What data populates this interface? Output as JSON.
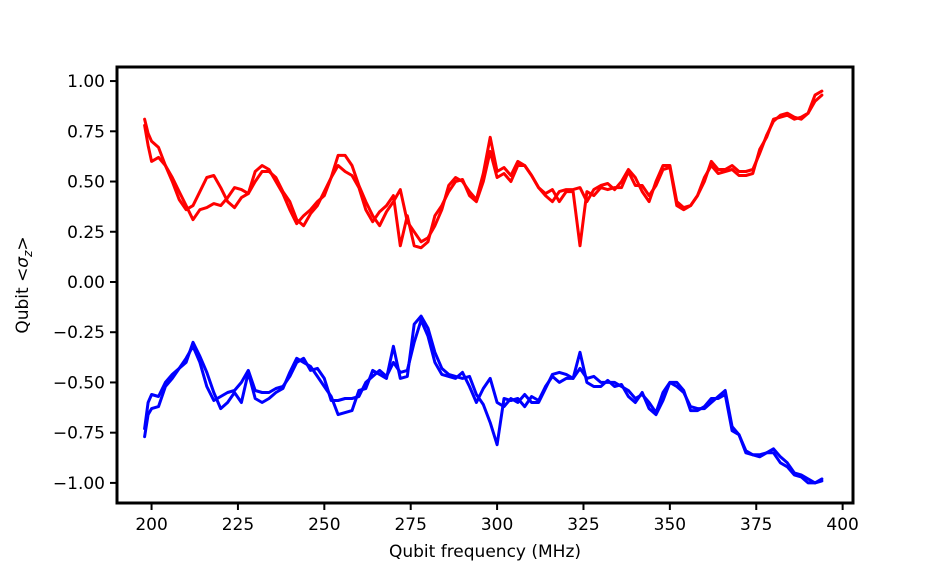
{
  "chart_data": {
    "type": "line",
    "title": "",
    "xlabel": "Qubit frequency (MHz)",
    "ylabel_prefix": "Qubit <",
    "ylabel_sigma": "σ",
    "ylabel_sub": "z",
    "ylabel_suffix": ">",
    "xlim": [
      190,
      403
    ],
    "ylim": [
      -1.1,
      1.07
    ],
    "xticks": [
      200,
      225,
      250,
      275,
      300,
      325,
      350,
      375,
      400
    ],
    "yticks": [
      1.0,
      0.75,
      0.5,
      0.25,
      0.0,
      -0.25,
      -0.5,
      -0.75,
      -1.0
    ],
    "ytick_labels": [
      "1.00",
      "0.75",
      "0.50",
      "0.25",
      "0.00",
      "−0.25",
      "−0.50",
      "−0.75",
      "−1.00"
    ],
    "grid": false,
    "legend": false,
    "series": [
      {
        "color": "#ff0000",
        "x": [
          198,
          199,
          200,
          202,
          204,
          206,
          208,
          210,
          212,
          214,
          216,
          218,
          220,
          222,
          224,
          226,
          228,
          230,
          232,
          234,
          236,
          238,
          240,
          242,
          244,
          246,
          248,
          250,
          252,
          254,
          256,
          258,
          260,
          262,
          264,
          266,
          268,
          270,
          272,
          274,
          276,
          278,
          280,
          282,
          284,
          286,
          288,
          290,
          292,
          294,
          296,
          298,
          300,
          302,
          304,
          306,
          308,
          310,
          312,
          314,
          316,
          318,
          320,
          322,
          324,
          326,
          328,
          330,
          332,
          334,
          336,
          338,
          340,
          342,
          344,
          346,
          348,
          350,
          352,
          354,
          356,
          358,
          360,
          362,
          364,
          366,
          368,
          370,
          372,
          374,
          376,
          378,
          380,
          382,
          384,
          386,
          388,
          390,
          392,
          394
        ],
        "values": [
          0.81,
          0.74,
          0.7,
          0.67,
          0.58,
          0.5,
          0.41,
          0.36,
          0.38,
          0.45,
          0.52,
          0.53,
          0.47,
          0.4,
          0.37,
          0.42,
          0.44,
          0.55,
          0.58,
          0.56,
          0.5,
          0.44,
          0.36,
          0.29,
          0.33,
          0.36,
          0.4,
          0.43,
          0.52,
          0.63,
          0.63,
          0.58,
          0.48,
          0.4,
          0.33,
          0.28,
          0.35,
          0.4,
          0.46,
          0.3,
          0.25,
          0.2,
          0.22,
          0.28,
          0.36,
          0.48,
          0.52,
          0.5,
          0.45,
          0.41,
          0.54,
          0.72,
          0.55,
          0.57,
          0.53,
          0.6,
          0.58,
          0.53,
          0.47,
          0.43,
          0.4,
          0.45,
          0.46,
          0.46,
          0.47,
          0.4,
          0.46,
          0.48,
          0.49,
          0.46,
          0.5,
          0.56,
          0.52,
          0.45,
          0.4,
          0.5,
          0.58,
          0.58,
          0.4,
          0.37,
          0.38,
          0.43,
          0.5,
          0.6,
          0.56,
          0.56,
          0.58,
          0.55,
          0.55,
          0.56,
          0.64,
          0.73,
          0.8,
          0.83,
          0.84,
          0.82,
          0.81,
          0.84,
          0.9,
          0.93
        ]
      },
      {
        "color": "#ff0000",
        "x": [
          198,
          199,
          200,
          202,
          204,
          206,
          208,
          210,
          212,
          214,
          216,
          218,
          220,
          222,
          224,
          226,
          228,
          230,
          232,
          234,
          236,
          238,
          240,
          242,
          244,
          246,
          248,
          250,
          252,
          254,
          256,
          258,
          260,
          262,
          264,
          266,
          268,
          270,
          272,
          274,
          276,
          278,
          280,
          282,
          284,
          286,
          288,
          290,
          292,
          294,
          296,
          298,
          300,
          302,
          304,
          306,
          308,
          310,
          312,
          314,
          316,
          318,
          320,
          322,
          324,
          326,
          328,
          330,
          332,
          334,
          336,
          338,
          340,
          342,
          344,
          346,
          348,
          350,
          352,
          354,
          356,
          358,
          360,
          362,
          364,
          366,
          368,
          370,
          372,
          374,
          376,
          378,
          380,
          382,
          384,
          386,
          388,
          390,
          392,
          394
        ],
        "values": [
          0.78,
          0.68,
          0.6,
          0.62,
          0.58,
          0.52,
          0.45,
          0.38,
          0.31,
          0.36,
          0.37,
          0.39,
          0.38,
          0.42,
          0.47,
          0.46,
          0.44,
          0.5,
          0.55,
          0.55,
          0.52,
          0.45,
          0.4,
          0.31,
          0.28,
          0.34,
          0.38,
          0.45,
          0.52,
          0.58,
          0.55,
          0.53,
          0.47,
          0.36,
          0.3,
          0.35,
          0.38,
          0.43,
          0.18,
          0.33,
          0.18,
          0.17,
          0.2,
          0.33,
          0.38,
          0.45,
          0.5,
          0.51,
          0.43,
          0.4,
          0.5,
          0.65,
          0.52,
          0.54,
          0.5,
          0.58,
          0.58,
          0.53,
          0.47,
          0.44,
          0.46,
          0.4,
          0.45,
          0.45,
          0.18,
          0.45,
          0.43,
          0.47,
          0.46,
          0.47,
          0.47,
          0.55,
          0.48,
          0.48,
          0.43,
          0.48,
          0.56,
          0.57,
          0.38,
          0.36,
          0.38,
          0.43,
          0.52,
          0.58,
          0.54,
          0.55,
          0.56,
          0.53,
          0.53,
          0.54,
          0.66,
          0.72,
          0.81,
          0.82,
          0.83,
          0.81,
          0.82,
          0.84,
          0.93,
          0.95
        ]
      },
      {
        "color": "#0000ff",
        "x": [
          198,
          199,
          200,
          202,
          204,
          206,
          208,
          210,
          212,
          214,
          216,
          218,
          220,
          222,
          224,
          226,
          228,
          230,
          232,
          234,
          236,
          238,
          240,
          242,
          244,
          246,
          248,
          250,
          252,
          254,
          256,
          258,
          260,
          262,
          264,
          266,
          268,
          270,
          272,
          274,
          276,
          278,
          280,
          282,
          284,
          286,
          288,
          290,
          292,
          294,
          296,
          298,
          300,
          302,
          304,
          306,
          308,
          310,
          312,
          314,
          316,
          318,
          320,
          322,
          324,
          326,
          328,
          330,
          332,
          334,
          336,
          338,
          340,
          342,
          344,
          346,
          348,
          350,
          352,
          354,
          356,
          358,
          360,
          362,
          364,
          366,
          368,
          370,
          372,
          374,
          376,
          378,
          380,
          382,
          384,
          386,
          388,
          390,
          392,
          394
        ],
        "values": [
          -0.73,
          -0.6,
          -0.56,
          -0.57,
          -0.5,
          -0.46,
          -0.43,
          -0.38,
          -0.32,
          -0.4,
          -0.52,
          -0.59,
          -0.57,
          -0.55,
          -0.54,
          -0.5,
          -0.44,
          -0.54,
          -0.55,
          -0.55,
          -0.53,
          -0.52,
          -0.47,
          -0.4,
          -0.38,
          -0.44,
          -0.43,
          -0.48,
          -0.59,
          -0.59,
          -0.58,
          -0.58,
          -0.57,
          -0.5,
          -0.47,
          -0.44,
          -0.47,
          -0.4,
          -0.45,
          -0.44,
          -0.3,
          -0.19,
          -0.27,
          -0.4,
          -0.46,
          -0.47,
          -0.48,
          -0.45,
          -0.52,
          -0.6,
          -0.53,
          -0.48,
          -0.6,
          -0.62,
          -0.58,
          -0.6,
          -0.56,
          -0.6,
          -0.6,
          -0.53,
          -0.46,
          -0.45,
          -0.46,
          -0.48,
          -0.43,
          -0.48,
          -0.47,
          -0.5,
          -0.5,
          -0.5,
          -0.52,
          -0.54,
          -0.58,
          -0.56,
          -0.6,
          -0.65,
          -0.55,
          -0.5,
          -0.52,
          -0.55,
          -0.62,
          -0.63,
          -0.63,
          -0.6,
          -0.57,
          -0.54,
          -0.72,
          -0.76,
          -0.84,
          -0.86,
          -0.86,
          -0.85,
          -0.83,
          -0.87,
          -0.9,
          -0.95,
          -0.96,
          -0.98,
          -1.0,
          -0.98
        ]
      },
      {
        "color": "#0000ff",
        "x": [
          198,
          199,
          200,
          202,
          204,
          206,
          208,
          210,
          212,
          214,
          216,
          218,
          220,
          222,
          224,
          226,
          228,
          230,
          232,
          234,
          236,
          238,
          240,
          242,
          244,
          246,
          248,
          250,
          252,
          254,
          256,
          258,
          260,
          262,
          264,
          266,
          268,
          270,
          272,
          274,
          276,
          278,
          280,
          282,
          284,
          286,
          288,
          290,
          292,
          294,
          296,
          298,
          300,
          302,
          304,
          306,
          308,
          310,
          312,
          314,
          316,
          318,
          320,
          322,
          324,
          326,
          328,
          330,
          332,
          334,
          336,
          338,
          340,
          342,
          344,
          346,
          348,
          350,
          352,
          354,
          356,
          358,
          360,
          362,
          364,
          366,
          368,
          370,
          372,
          374,
          376,
          378,
          380,
          382,
          384,
          386,
          388,
          390,
          392,
          394
        ],
        "values": [
          -0.77,
          -0.66,
          -0.63,
          -0.62,
          -0.52,
          -0.48,
          -0.43,
          -0.4,
          -0.3,
          -0.37,
          -0.45,
          -0.55,
          -0.63,
          -0.6,
          -0.55,
          -0.6,
          -0.45,
          -0.58,
          -0.6,
          -0.58,
          -0.55,
          -0.53,
          -0.45,
          -0.38,
          -0.4,
          -0.42,
          -0.47,
          -0.52,
          -0.57,
          -0.66,
          -0.65,
          -0.64,
          -0.54,
          -0.53,
          -0.44,
          -0.46,
          -0.48,
          -0.32,
          -0.48,
          -0.47,
          -0.21,
          -0.17,
          -0.23,
          -0.35,
          -0.43,
          -0.46,
          -0.47,
          -0.48,
          -0.47,
          -0.56,
          -0.61,
          -0.7,
          -0.81,
          -0.58,
          -0.59,
          -0.58,
          -0.62,
          -0.57,
          -0.59,
          -0.52,
          -0.47,
          -0.5,
          -0.48,
          -0.48,
          -0.35,
          -0.5,
          -0.52,
          -0.52,
          -0.49,
          -0.52,
          -0.51,
          -0.57,
          -0.6,
          -0.55,
          -0.63,
          -0.66,
          -0.59,
          -0.5,
          -0.5,
          -0.54,
          -0.64,
          -0.64,
          -0.62,
          -0.58,
          -0.58,
          -0.56,
          -0.74,
          -0.76,
          -0.85,
          -0.86,
          -0.87,
          -0.85,
          -0.85,
          -0.9,
          -0.92,
          -0.96,
          -0.97,
          -1.0,
          -1.0,
          -0.99
        ]
      }
    ]
  }
}
